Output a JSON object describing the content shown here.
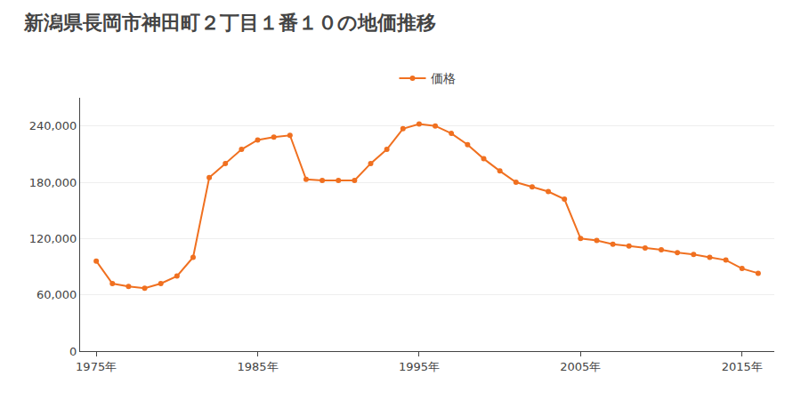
{
  "chart_data": {
    "type": "line",
    "title": "新潟県長岡市神田町２丁目１番１０の地価推移",
    "x": [
      1975,
      1976,
      1977,
      1978,
      1979,
      1980,
      1981,
      1982,
      1983,
      1984,
      1985,
      1986,
      1987,
      1988,
      1989,
      1990,
      1991,
      1992,
      1993,
      1994,
      1995,
      1996,
      1997,
      1998,
      1999,
      2000,
      2001,
      2002,
      2003,
      2004,
      2005,
      2006,
      2007,
      2008,
      2009,
      2010,
      2011,
      2012,
      2013,
      2014,
      2015,
      2016
    ],
    "series": [
      {
        "name": "価格",
        "color": "#f07020",
        "values": [
          96000,
          72000,
          69000,
          67000,
          72000,
          80000,
          100000,
          185000,
          200000,
          215000,
          225000,
          228000,
          230000,
          183000,
          182000,
          182000,
          182000,
          200000,
          215000,
          237000,
          242000,
          240000,
          232000,
          220000,
          205000,
          192000,
          180000,
          175000,
          170000,
          162000,
          120000,
          118000,
          114000,
          112000,
          110000,
          108000,
          105000,
          103000,
          100000,
          97000,
          88000,
          83000
        ]
      }
    ],
    "xlim": [
      1974,
      2017
    ],
    "xticks": [
      {
        "value": 1975,
        "label": "1975年"
      },
      {
        "value": 1985,
        "label": "1985年"
      },
      {
        "value": 1995,
        "label": "1995年"
      },
      {
        "value": 2005,
        "label": "2005年"
      },
      {
        "value": 2015,
        "label": "2015年"
      }
    ],
    "ylim": [
      0,
      270000
    ],
    "yticks": [
      0,
      {
        "value": 60000,
        "label": "60,000"
      },
      {
        "value": 120000,
        "label": "120,000"
      },
      {
        "value": 180000,
        "label": "180,000"
      },
      {
        "value": 240000,
        "label": "240,000"
      }
    ],
    "grid": true,
    "legend": "top",
    "marker": "circle"
  }
}
